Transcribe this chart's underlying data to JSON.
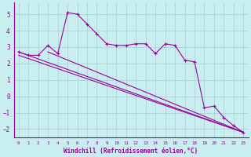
{
  "xlabel": "Windchill (Refroidissement éolien,°C)",
  "background_color": "#c8eef0",
  "grid_color": "#b0d8dc",
  "line_color": "#990099",
  "xlim": [
    -0.5,
    23.5
  ],
  "ylim": [
    -2.5,
    5.7
  ],
  "yticks": [
    -2,
    -1,
    0,
    1,
    2,
    3,
    4,
    5
  ],
  "xticks": [
    0,
    1,
    2,
    3,
    4,
    5,
    6,
    7,
    8,
    9,
    10,
    11,
    12,
    13,
    14,
    15,
    16,
    17,
    18,
    19,
    20,
    21,
    22,
    23
  ],
  "series1_x": [
    0,
    1,
    2,
    3,
    4,
    5,
    6,
    7,
    8,
    9,
    10,
    11,
    12,
    13,
    14,
    15,
    16,
    17,
    18,
    19,
    20,
    21,
    22,
    23
  ],
  "series1_y": [
    2.7,
    2.5,
    2.5,
    3.1,
    2.6,
    5.1,
    5.0,
    4.4,
    3.8,
    3.2,
    3.1,
    3.1,
    3.2,
    3.2,
    2.6,
    3.2,
    3.1,
    2.2,
    2.1,
    -0.7,
    -0.6,
    -1.3,
    -1.8,
    -2.2
  ],
  "line1_x": [
    0,
    23
  ],
  "line1_y": [
    2.7,
    -2.2
  ],
  "line2_x": [
    0,
    23
  ],
  "line2_y": [
    2.5,
    -2.2
  ],
  "line3_x": [
    3,
    23
  ],
  "line3_y": [
    2.7,
    -2.2
  ],
  "font_family": "monospace"
}
